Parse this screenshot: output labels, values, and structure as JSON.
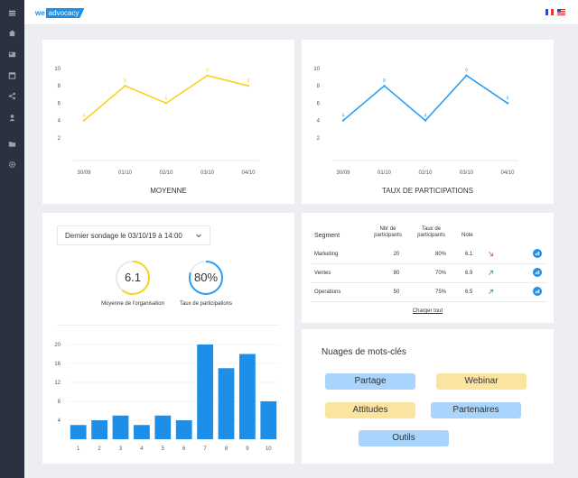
{
  "brand": {
    "logo_we": "we",
    "logo_advocacy": "advocacy"
  },
  "sidebar": {
    "items": [
      {
        "icon": "hamburger-menu-icon"
      },
      {
        "icon": "home-icon"
      },
      {
        "icon": "news-icon"
      },
      {
        "icon": "calendar-icon"
      },
      {
        "icon": "share-icon"
      },
      {
        "icon": "user-icon"
      },
      {
        "icon": "folder-icon"
      },
      {
        "icon": "settings-icon"
      }
    ]
  },
  "languages": [
    {
      "icon": "flag-fr-icon"
    },
    {
      "icon": "flag-us-icon"
    }
  ],
  "colors": {
    "accent": "#1e8fe8",
    "line_yellow": "#f7d320",
    "line_blue": "#2e9ef0",
    "sidebar": "#2b3140",
    "green": "#3db25a",
    "red": "#e0624a"
  },
  "moyenne_chart": {
    "title": "MOYENNE",
    "y_ticks": [
      "10",
      "8",
      "6",
      "4",
      "2"
    ],
    "x_ticks": [
      "30/09",
      "01/10",
      "02/10",
      "03/10",
      "04/10"
    ],
    "point_labels": [
      "4",
      "8",
      "6",
      "9",
      "8"
    ]
  },
  "participation_chart": {
    "title": "TAUX DE PARTICIPATIONS",
    "y_ticks": [
      "10",
      "8",
      "6",
      "4",
      "2"
    ],
    "x_ticks": [
      "30/09",
      "01/10",
      "02/10",
      "03/10",
      "04/10"
    ],
    "point_labels": [
      "4",
      "8",
      "4",
      "9",
      "6"
    ]
  },
  "survey": {
    "select_label": "Dernier sondage le 03/10/19 à 14:00",
    "kpis": [
      {
        "value": "6.1",
        "label": "Moyenne de l'organisation",
        "fraction": 0.61,
        "color": "#f7d320"
      },
      {
        "value": "80%",
        "label": "Taux de participations",
        "fraction": 0.8,
        "color": "#2e9ef0"
      }
    ],
    "histogram_y_ticks": [
      "20",
      "16",
      "12",
      "8",
      "4"
    ],
    "histogram_x_ticks": [
      "1",
      "2",
      "3",
      "4",
      "5",
      "6",
      "7",
      "8",
      "9",
      "10"
    ]
  },
  "segments": {
    "headers": {
      "segment": "Segment",
      "participants": "Nbr de participants",
      "rate": "Taux de participants",
      "note": "Note"
    },
    "rows": [
      {
        "segment": "Marketing",
        "participants": "20",
        "rate": "80%",
        "note": "6.1",
        "trend": "down"
      },
      {
        "segment": "Ventes",
        "participants": "80",
        "rate": "70%",
        "note": "6.9",
        "trend": "up"
      },
      {
        "segment": "Operations",
        "participants": "50",
        "rate": "75%",
        "note": "6.5",
        "trend": "up"
      }
    ],
    "load_all": "Charger tout"
  },
  "word_cloud": {
    "title": "Nuages de mots-clés",
    "tags": [
      {
        "label": "Partage",
        "color": "blue"
      },
      {
        "label": "Webinar",
        "color": "yellow"
      },
      {
        "label": "Attitudes",
        "color": "yellow"
      },
      {
        "label": "Partenaires",
        "color": "blue"
      },
      {
        "label": "Outils",
        "color": "blue"
      }
    ]
  },
  "chart_data": [
    {
      "type": "line",
      "title": "MOYENNE",
      "x": [
        "30/09",
        "01/10",
        "02/10",
        "03/10",
        "04/10"
      ],
      "series": [
        {
          "values": [
            4,
            8,
            6,
            9.2,
            8
          ]
        }
      ],
      "ylim": [
        0,
        10
      ],
      "y_ticks": [
        2,
        4,
        6,
        8,
        10
      ],
      "grid": false
    },
    {
      "type": "line",
      "title": "TAUX DE PARTICIPATIONS",
      "x": [
        "30/09",
        "01/10",
        "02/10",
        "03/10",
        "04/10"
      ],
      "series": [
        {
          "values": [
            4,
            8,
            4,
            9.2,
            6
          ]
        }
      ],
      "ylim": [
        0,
        10
      ],
      "y_ticks": [
        2,
        4,
        6,
        8,
        10
      ],
      "grid": false
    },
    {
      "type": "bar",
      "categories": [
        "1",
        "2",
        "3",
        "4",
        "5",
        "6",
        "7",
        "8",
        "9",
        "10"
      ],
      "values": [
        3,
        4,
        5,
        3,
        5,
        4,
        20,
        15,
        18,
        8
      ],
      "ylim": [
        0,
        20
      ],
      "y_ticks": [
        4,
        8,
        12,
        16,
        20
      ],
      "grid": true
    }
  ]
}
